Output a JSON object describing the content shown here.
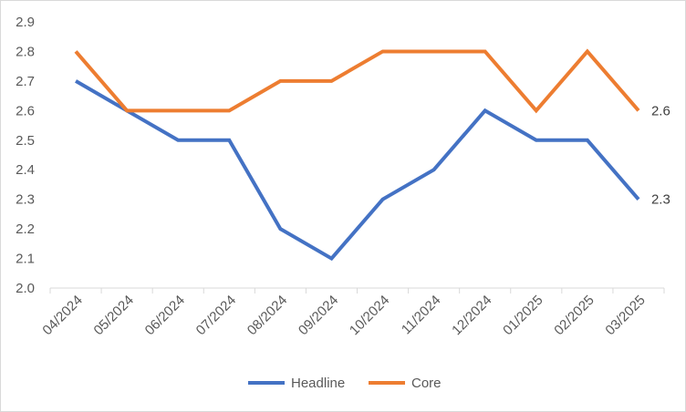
{
  "chart_data": {
    "type": "line",
    "categories": [
      "04/2024",
      "05/2024",
      "06/2024",
      "07/2024",
      "08/2024",
      "09/2024",
      "10/2024",
      "11/2024",
      "12/2024",
      "01/2025",
      "02/2025",
      "03/2025"
    ],
    "series": [
      {
        "name": "Headline",
        "color": "#4472C4",
        "values": [
          2.7,
          2.6,
          2.5,
          2.5,
          2.2,
          2.1,
          2.3,
          2.4,
          2.6,
          2.5,
          2.5,
          2.3
        ]
      },
      {
        "name": "Core",
        "color": "#ED7D31",
        "values": [
          2.8,
          2.6,
          2.6,
          2.6,
          2.7,
          2.7,
          2.8,
          2.8,
          2.8,
          2.6,
          2.8,
          2.6
        ]
      }
    ],
    "ylim": [
      2.0,
      2.9
    ],
    "yticks": [
      "2.0",
      "2.1",
      "2.2",
      "2.3",
      "2.4",
      "2.5",
      "2.6",
      "2.7",
      "2.8",
      "2.9"
    ],
    "end_labels": [
      "2.3",
      "2.6"
    ],
    "legend_position": "bottom",
    "grid": false
  }
}
